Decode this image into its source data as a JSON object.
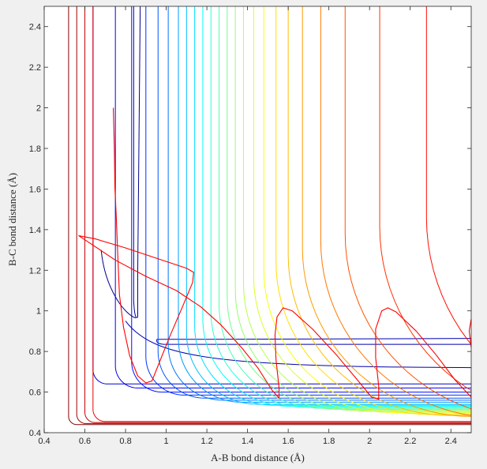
{
  "chart_data": {
    "type": "contour",
    "xlabel": "A-B bond distance (Å)",
    "ylabel": "B-C bond distance (Å)",
    "xlim": [
      0.4,
      2.5
    ],
    "ylim": [
      0.4,
      2.5
    ],
    "xticks": [
      "0.4",
      "0.6",
      "0.8",
      "1",
      "1.2",
      "1.4",
      "1.6",
      "1.8",
      "2",
      "2.2",
      "2.4"
    ],
    "yticks": [
      "0.4",
      "0.6",
      "0.8",
      "1",
      "1.2",
      "1.4",
      "1.6",
      "1.8",
      "2",
      "2.2",
      "2.4"
    ],
    "grid": false,
    "legend": "none",
    "colormap": [
      "#00008f",
      "#0000ff",
      "#0080ff",
      "#00ffff",
      "#80ff80",
      "#ffff00",
      "#ff8000",
      "#ff0000",
      "#800000"
    ],
    "trajectory_color": "#ff0000",
    "contours": [
      {
        "level": 1,
        "rx": 0.855,
        "ry": 0.965,
        "cx": 0.925,
        "cy": 0.905,
        "reactant_y": 0.965
      },
      {
        "level": 2,
        "rx": 0.955,
        "ry": 0.845,
        "cx": 1.02,
        "cy": 0.85,
        "product_x": 0.955
      },
      {
        "level": 3,
        "rx": 0.64,
        "ry": 0.64,
        "r": 0.07
      },
      {
        "level": 4,
        "rx": 0.75,
        "ry": 0.62,
        "r": 0.11
      },
      {
        "level": 5,
        "rx": 0.83,
        "ry": 0.6,
        "r": 0.15
      },
      {
        "level": 6,
        "rx": 0.9,
        "ry": 0.585,
        "r": 0.19
      },
      {
        "level": 7,
        "rx": 0.96,
        "ry": 0.57,
        "r": 0.23
      },
      {
        "level": 8,
        "rx": 1.01,
        "ry": 0.56,
        "r": 0.27
      },
      {
        "level": 9,
        "rx": 1.06,
        "ry": 0.55,
        "r": 0.31
      },
      {
        "level": 10,
        "rx": 1.1,
        "ry": 0.54,
        "r": 0.35
      },
      {
        "level": 11,
        "rx": 1.14,
        "ry": 0.535,
        "r": 0.39
      },
      {
        "level": 12,
        "rx": 1.18,
        "ry": 0.53,
        "r": 0.43
      },
      {
        "level": 13,
        "rx": 1.22,
        "ry": 0.525,
        "r": 0.47
      },
      {
        "level": 14,
        "rx": 1.26,
        "ry": 0.52,
        "r": 0.51
      },
      {
        "level": 15,
        "rx": 1.3,
        "ry": 0.515,
        "r": 0.55
      },
      {
        "level": 16,
        "rx": 1.34,
        "ry": 0.51,
        "r": 0.59
      },
      {
        "level": 17,
        "rx": 1.38,
        "ry": 0.505,
        "r": 0.63
      },
      {
        "level": 18,
        "rx": 1.43,
        "ry": 0.5,
        "r": 0.67
      },
      {
        "level": 19,
        "rx": 1.48,
        "ry": 0.495,
        "r": 0.71
      },
      {
        "level": 20,
        "rx": 1.54,
        "ry": 0.49,
        "r": 0.75
      },
      {
        "level": 21,
        "rx": 1.6,
        "ry": 0.485,
        "r": 0.79
      },
      {
        "level": 22,
        "rx": 1.67,
        "ry": 0.48,
        "r": 0.83
      },
      {
        "level": 23,
        "rx": 1.76,
        "ry": 0.475,
        "r": 0.87
      },
      {
        "level": 24,
        "rx": 1.88,
        "ry": 0.47,
        "r": 0.91
      },
      {
        "level": 25,
        "rx": 2.05,
        "ry": 0.465,
        "r": 0.95
      },
      {
        "level": 26,
        "rx": 2.28,
        "ry": 0.46,
        "r": 1.0
      },
      {
        "level": 27,
        "rx": 0.64,
        "ry": 0.455,
        "r": 0.06
      },
      {
        "level": 28,
        "rx": 0.6,
        "ry": 0.45,
        "r": 0.05
      },
      {
        "level": 29,
        "rx": 0.56,
        "ry": 0.445,
        "r": 0.045
      },
      {
        "level": 30,
        "rx": 0.52,
        "ry": 0.44,
        "r": 0.04
      }
    ],
    "trajectory": [
      [
        0.74,
        2.0
      ],
      [
        0.745,
        1.8
      ],
      [
        0.748,
        1.6
      ],
      [
        0.755,
        1.45
      ],
      [
        0.76,
        1.32
      ],
      [
        0.765,
        1.2
      ],
      [
        0.77,
        1.08
      ],
      [
        0.79,
        0.92
      ],
      [
        0.82,
        0.78
      ],
      [
        0.86,
        0.68
      ],
      [
        0.9,
        0.645
      ],
      [
        0.93,
        0.655
      ],
      [
        0.96,
        0.73
      ],
      [
        1.02,
        0.88
      ],
      [
        1.08,
        1.02
      ],
      [
        1.13,
        1.14
      ],
      [
        1.135,
        1.19
      ],
      [
        1.1,
        1.21
      ],
      [
        0.95,
        1.26
      ],
      [
        0.8,
        1.31
      ],
      [
        0.65,
        1.355
      ],
      [
        0.57,
        1.37
      ],
      [
        0.6,
        1.35
      ],
      [
        0.75,
        1.25
      ],
      [
        0.9,
        1.17
      ],
      [
        1.05,
        1.1
      ],
      [
        1.17,
        1.02
      ],
      [
        1.27,
        0.93
      ],
      [
        1.37,
        0.82
      ],
      [
        1.45,
        0.72
      ],
      [
        1.52,
        0.61
      ],
      [
        1.555,
        0.57
      ],
      [
        1.555,
        0.62
      ],
      [
        1.54,
        0.76
      ],
      [
        1.535,
        0.88
      ],
      [
        1.545,
        0.97
      ],
      [
        1.575,
        1.015
      ],
      [
        1.62,
        1.0
      ],
      [
        1.72,
        0.91
      ],
      [
        1.84,
        0.78
      ],
      [
        1.94,
        0.66
      ],
      [
        2.01,
        0.575
      ],
      [
        2.045,
        0.565
      ],
      [
        2.045,
        0.63
      ],
      [
        2.03,
        0.77
      ],
      [
        2.03,
        0.91
      ],
      [
        2.06,
        1.0
      ],
      [
        2.09,
        1.015
      ],
      [
        2.13,
        0.995
      ],
      [
        2.23,
        0.9
      ],
      [
        2.33,
        0.78
      ],
      [
        2.42,
        0.66
      ],
      [
        2.5,
        0.575
      ]
    ],
    "trajectory_tail": [
      [
        2.5,
        0.96
      ],
      [
        2.49,
        0.9
      ],
      [
        2.5,
        0.82
      ]
    ]
  }
}
